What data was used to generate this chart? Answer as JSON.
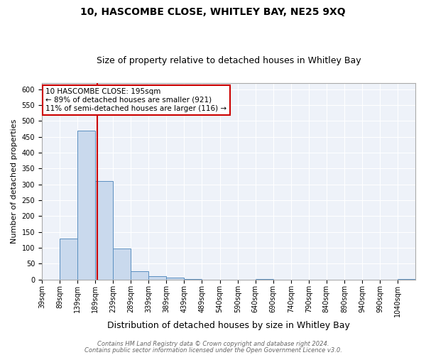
{
  "title": "10, HASCOMBE CLOSE, WHITLEY BAY, NE25 9XQ",
  "subtitle": "Size of property relative to detached houses in Whitley Bay",
  "xlabel": "Distribution of detached houses by size in Whitley Bay",
  "ylabel": "Number of detached properties",
  "bar_edges": [
    39,
    89,
    139,
    189,
    239,
    289,
    339,
    389,
    439,
    489,
    540,
    590,
    640,
    690,
    740,
    790,
    840,
    890,
    940,
    990,
    1040
  ],
  "bar_heights": [
    0,
    128,
    470,
    311,
    97,
    25,
    10,
    5,
    2,
    0,
    0,
    0,
    2,
    0,
    0,
    0,
    0,
    0,
    0,
    0,
    2
  ],
  "bar_color": "#c9d9ed",
  "bar_edge_color": "#5a8fc0",
  "property_size": 195,
  "vline_color": "#cc0000",
  "annotation_text": "10 HASCOMBE CLOSE: 195sqm\n← 89% of detached houses are smaller (921)\n11% of semi-detached houses are larger (116) →",
  "annotation_box_edge_color": "#cc0000",
  "annotation_box_face_color": "white",
  "ylim": [
    0,
    620
  ],
  "yticks": [
    0,
    50,
    100,
    150,
    200,
    250,
    300,
    350,
    400,
    450,
    500,
    550,
    600
  ],
  "background_color": "#eef2f9",
  "grid_color": "#ffffff",
  "footer_line1": "Contains HM Land Registry data © Crown copyright and database right 2024.",
  "footer_line2": "Contains public sector information licensed under the Open Government Licence v3.0.",
  "title_fontsize": 10,
  "subtitle_fontsize": 9,
  "xlabel_fontsize": 9,
  "ylabel_fontsize": 8,
  "tick_label_fontsize": 7,
  "annotation_fontsize": 7.5,
  "footer_fontsize": 6
}
